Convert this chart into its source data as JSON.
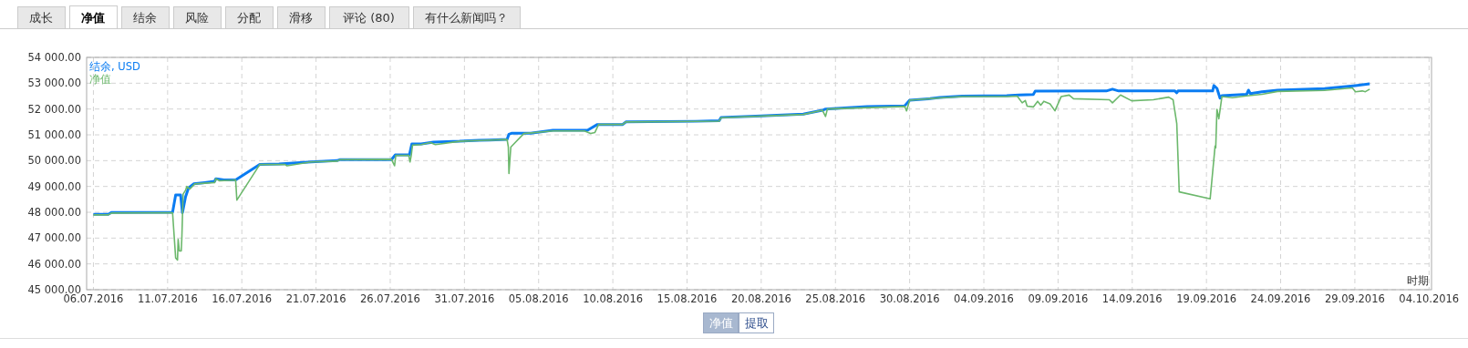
{
  "chart_data": {
    "type": "line",
    "xlabel": "时期",
    "annotations": [
      "成长",
      "净值",
      "结余",
      "风险",
      "分配",
      "滑移",
      "评论 (80)",
      "有什么新闻吗？",
      "净值",
      "提取"
    ],
    "xlim": [
      "2016-07-05T13:00",
      "2016-10-04T04:00"
    ],
    "xticks": [
      {
        "value": "2016-07-06",
        "label": "06.07.2016"
      },
      {
        "value": "2016-07-11",
        "label": "11.07.2016"
      },
      {
        "value": "2016-07-16",
        "label": "16.07.2016"
      },
      {
        "value": "2016-07-21",
        "label": "21.07.2016"
      },
      {
        "value": "2016-07-26",
        "label": "26.07.2016"
      },
      {
        "value": "2016-07-31",
        "label": "31.07.2016"
      },
      {
        "value": "2016-08-05",
        "label": "05.08.2016"
      },
      {
        "value": "2016-08-10",
        "label": "10.08.2016"
      },
      {
        "value": "2016-08-15",
        "label": "15.08.2016"
      },
      {
        "value": "2016-08-20",
        "label": "20.08.2016"
      },
      {
        "value": "2016-08-25",
        "label": "25.08.2016"
      },
      {
        "value": "2016-08-30",
        "label": "30.08.2016"
      },
      {
        "value": "2016-09-04",
        "label": "04.09.2016"
      },
      {
        "value": "2016-09-09",
        "label": "09.09.2016"
      },
      {
        "value": "2016-09-14",
        "label": "14.09.2016"
      },
      {
        "value": "2016-09-19",
        "label": "19.09.2016"
      },
      {
        "value": "2016-09-24",
        "label": "24.09.2016"
      },
      {
        "value": "2016-09-29",
        "label": "29.09.2016"
      },
      {
        "value": "2016-10-04",
        "label": "04.10.2016"
      }
    ],
    "ylim": [
      45000,
      54000
    ],
    "yticks": [
      {
        "value": 45000,
        "label": "45 000.00"
      },
      {
        "value": 46000,
        "label": "46 000.00"
      },
      {
        "value": 47000,
        "label": "47 000.00"
      },
      {
        "value": 48000,
        "label": "48 000.00"
      },
      {
        "value": 49000,
        "label": "49 000.00"
      },
      {
        "value": 50000,
        "label": "50 000.00"
      },
      {
        "value": 51000,
        "label": "51 000.00"
      },
      {
        "value": 52000,
        "label": "52 000.00"
      },
      {
        "value": 53000,
        "label": "53 000.00"
      },
      {
        "value": 54000,
        "label": "54 000.00"
      }
    ],
    "grid": true,
    "legend": "top left",
    "marker": "none",
    "line_style": "solid",
    "series": [
      {
        "name": "结余, USD",
        "color": "#0a7cf2",
        "x": [
          "2016-07-06T00:00",
          "2016-07-07T00:00",
          "2016-07-07T05:00",
          "2016-07-11T08:00",
          "2016-07-11T13:00",
          "2016-07-11T21:00",
          "2016-07-12T00:00",
          "2016-07-12T05:00",
          "2016-07-12T10:00",
          "2016-07-12T18:00",
          "2016-07-13T12:00",
          "2016-07-14T04:00",
          "2016-07-14T06:00",
          "2016-07-14T19:00",
          "2016-07-15T14:00",
          "2016-07-17T05:00",
          "2016-07-18T12:00",
          "2016-07-20T16:00",
          "2016-07-22T10:00",
          "2016-07-22T15:00",
          "2016-07-26T02:00",
          "2016-07-26T08:00",
          "2016-07-27T07:00",
          "2016-07-27T11:00",
          "2016-07-28T02:00",
          "2016-07-28T22:00",
          "2016-07-30T16:00",
          "2016-08-01T00:00",
          "2016-08-01T17:00",
          "2016-08-02T21:00",
          "2016-08-03T00:00",
          "2016-08-03T04:00",
          "2016-08-04T11:00",
          "2016-08-05T23:00",
          "2016-08-08T07:00",
          "2016-08-08T23:00",
          "2016-08-10T16:00",
          "2016-08-10T21:00",
          "2016-08-15T14:00",
          "2016-08-17T04:00",
          "2016-08-17T07:00",
          "2016-08-19T15:00",
          "2016-08-22T20:00",
          "2016-08-24T03:00",
          "2016-08-24T08:00",
          "2016-08-27T03:00",
          "2016-08-29T16:00",
          "2016-08-30T00:00",
          "2016-08-31T09:00",
          "2016-09-01T01:00",
          "2016-09-02T13:00",
          "2016-09-05T13:00",
          "2016-09-06T09:00",
          "2016-09-07T08:00",
          "2016-09-07T11:00",
          "2016-09-12T06:00",
          "2016-09-12T16:00",
          "2016-09-13T02:00",
          "2016-09-16T21:00",
          "2016-09-17T00:00",
          "2016-09-17T02:00",
          "2016-09-19T10:00",
          "2016-09-19T12:00",
          "2016-09-19T17:00",
          "2016-09-19T22:00",
          "2016-09-20T01:00",
          "2016-09-21T17:00",
          "2016-09-21T20:00",
          "2016-09-21T23:00",
          "2016-09-22T18:00",
          "2016-09-23T19:00",
          "2016-09-26T23:00",
          "2016-09-29T01:00",
          "2016-09-30T00:00"
        ],
        "values": [
          47920,
          47920,
          47990,
          48000,
          48670,
          48670,
          47980,
          48600,
          48950,
          49100,
          49150,
          49200,
          49300,
          49250,
          49250,
          49850,
          49870,
          49950,
          50000,
          50040,
          50040,
          50220,
          50220,
          50650,
          50650,
          50720,
          50750,
          50790,
          50800,
          50825,
          51025,
          51060,
          51060,
          51175,
          51175,
          51400,
          51400,
          51500,
          51525,
          51550,
          51675,
          51725,
          51800,
          51950,
          52000,
          52090,
          52125,
          52340,
          52400,
          52450,
          52500,
          52520,
          52540,
          52560,
          52690,
          52700,
          52770,
          52700,
          52700,
          52630,
          52700,
          52700,
          52910,
          52800,
          52420,
          52520,
          52570,
          52730,
          52600,
          52670,
          52730,
          52790,
          52910,
          52975
        ]
      },
      {
        "name": "净值",
        "color": "#6cb86c",
        "x": [
          "2016-07-06T00:00",
          "2016-07-07T00:00",
          "2016-07-07T05:00",
          "2016-07-11T08:00",
          "2016-07-11T13:00",
          "2016-07-11T16:00",
          "2016-07-11T17:00",
          "2016-07-11T19:00",
          "2016-07-11T22:00",
          "2016-07-11T23:00",
          "2016-07-12T01:00",
          "2016-07-12T05:00",
          "2016-07-12T07:00",
          "2016-07-12T12:00",
          "2016-07-12T20:00",
          "2016-07-14T04:00",
          "2016-07-14T06:00",
          "2016-07-14T12:00",
          "2016-07-15T14:00",
          "2016-07-15T16:00",
          "2016-07-17T05:00",
          "2016-07-18T22:00",
          "2016-07-19T01:00",
          "2016-07-20T16:00",
          "2016-07-22T10:00",
          "2016-07-22T15:00",
          "2016-07-26T02:00",
          "2016-07-26T07:00",
          "2016-07-26T09:00",
          "2016-07-27T06:00",
          "2016-07-27T08:00",
          "2016-07-27T10:00",
          "2016-07-27T12:00",
          "2016-07-28T02:00",
          "2016-07-28T17:00",
          "2016-07-29T01:00",
          "2016-07-30T16:00",
          "2016-08-01T00:00",
          "2016-08-02T21:00",
          "2016-08-02T23:00",
          "2016-08-03T00:00",
          "2016-08-03T03:00",
          "2016-08-04T00:00",
          "2016-08-05T23:00",
          "2016-08-08T02:00",
          "2016-08-08T12:00",
          "2016-08-08T19:00",
          "2016-08-09T01:00",
          "2016-08-10T16:00",
          "2016-08-10T21:00",
          "2016-08-17T04:00",
          "2016-08-17T07:00",
          "2016-08-22T20:00",
          "2016-08-24T03:00",
          "2016-08-24T08:00",
          "2016-08-24T11:00",
          "2016-08-29T16:00",
          "2016-08-29T19:00",
          "2016-08-30T00:00",
          "2016-09-01T01:00",
          "2016-09-02T13:00",
          "2016-09-05T13:00",
          "2016-09-06T06:00",
          "2016-09-06T14:00",
          "2016-09-06T19:00",
          "2016-09-06T22:00",
          "2016-09-07T08:00",
          "2016-09-07T15:00",
          "2016-09-07T20:00",
          "2016-09-08T01:00",
          "2016-09-08T11:00",
          "2016-09-08T19:00",
          "2016-09-09T05:00",
          "2016-09-09T18:00",
          "2016-09-10T01:00",
          "2016-09-12T11:00",
          "2016-09-12T16:00",
          "2016-09-13T05:00",
          "2016-09-13T23:00",
          "2016-09-15T10:00",
          "2016-09-16T11:00",
          "2016-09-16T18:00",
          "2016-09-17T00:00",
          "2016-09-17T04:00",
          "2016-09-19T06:00",
          "2016-09-19T14:00",
          "2016-09-19T15:00",
          "2016-09-19T17:00",
          "2016-09-19T20:00",
          "2016-09-20T01:00",
          "2016-09-20T18:00",
          "2016-09-21T17:00",
          "2016-09-22T18:00",
          "2016-09-23T19:00",
          "2016-09-26T23:00",
          "2016-09-28T20:00",
          "2016-09-29T01:00",
          "2016-09-29T12:00",
          "2016-09-29T17:00",
          "2016-09-30T00:00"
        ],
        "values": [
          47900,
          47900,
          47970,
          47980,
          46230,
          46150,
          46950,
          46500,
          46500,
          47000,
          48700,
          48850,
          49000,
          48900,
          49100,
          49150,
          49300,
          49220,
          49250,
          48470,
          49850,
          49850,
          49800,
          49950,
          49980,
          50040,
          50050,
          49800,
          50200,
          50200,
          49950,
          50200,
          50600,
          50620,
          50700,
          50620,
          50750,
          50780,
          50820,
          50525,
          49500,
          50525,
          51050,
          51150,
          51150,
          51050,
          51090,
          51400,
          51400,
          51500,
          51530,
          51660,
          51790,
          51950,
          51710,
          52000,
          52100,
          51925,
          52340,
          52430,
          52480,
          52480,
          52500,
          52240,
          52330,
          52110,
          52080,
          52300,
          52150,
          52300,
          52200,
          51930,
          52480,
          52540,
          52400,
          52360,
          52240,
          52545,
          52320,
          52360,
          52460,
          52360,
          51440,
          48790,
          48520,
          50570,
          50500,
          51990,
          51620,
          52480,
          52440,
          52510,
          52570,
          52680,
          52720,
          52815,
          52670,
          52700,
          52670,
          52770
        ]
      }
    ]
  }
}
